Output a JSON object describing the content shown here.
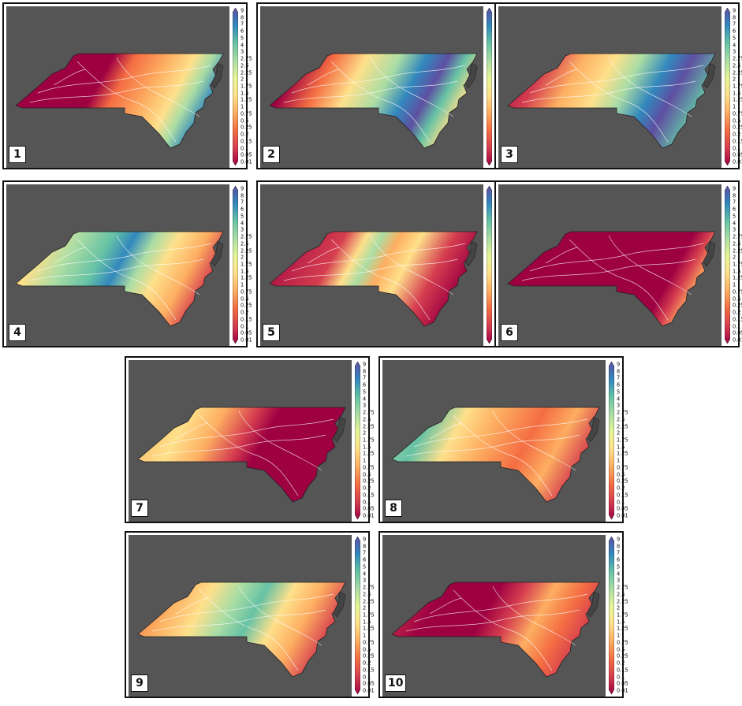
{
  "colorbar": {
    "ticks": [
      "9",
      "8",
      "7",
      "6",
      "5",
      "4",
      "3",
      "2.75",
      "2.5",
      "2.25",
      "2",
      "1.75",
      "1.5",
      "1.25",
      "1",
      "0.75",
      "0.5",
      "0.25",
      "0.2",
      "0.15",
      "0.1",
      "0.05",
      "0.01"
    ],
    "colors": [
      "#5e4fa2",
      "#3288bd",
      "#66c2a5",
      "#abdda4",
      "#e6f598",
      "#fee08b",
      "#fdae61",
      "#f46d43",
      "#d53e4f",
      "#9e0142"
    ]
  },
  "map_background": "#555555",
  "panels": [
    {
      "label": "1",
      "stops": [
        [
          0,
          "#9e0142"
        ],
        [
          0.45,
          "#9e0142"
        ],
        [
          0.55,
          "#f46d43"
        ],
        [
          0.7,
          "#fdae61"
        ],
        [
          0.82,
          "#fee08b"
        ],
        [
          0.9,
          "#abdda4"
        ],
        [
          1,
          "#3288bd"
        ]
      ]
    },
    {
      "label": "2",
      "stops": [
        [
          0,
          "#9e0142"
        ],
        [
          0.15,
          "#9e0142"
        ],
        [
          0.3,
          "#f46d43"
        ],
        [
          0.45,
          "#fee08b"
        ],
        [
          0.6,
          "#abdda4"
        ],
        [
          0.72,
          "#3288bd"
        ],
        [
          0.82,
          "#5e4fa2"
        ],
        [
          0.9,
          "#66c2a5"
        ],
        [
          1,
          "#fee08b"
        ]
      ]
    },
    {
      "label": "3",
      "stops": [
        [
          0,
          "#9e0142"
        ],
        [
          0.2,
          "#d53e4f"
        ],
        [
          0.35,
          "#fdae61"
        ],
        [
          0.5,
          "#fee08b"
        ],
        [
          0.62,
          "#abdda4"
        ],
        [
          0.75,
          "#3288bd"
        ],
        [
          0.85,
          "#5e4fa2"
        ],
        [
          1,
          "#66c2a5"
        ]
      ]
    },
    {
      "label": "4",
      "stops": [
        [
          0,
          "#f46d43"
        ],
        [
          0.15,
          "#fee08b"
        ],
        [
          0.3,
          "#abdda4"
        ],
        [
          0.45,
          "#66c2a5"
        ],
        [
          0.55,
          "#3288bd"
        ],
        [
          0.65,
          "#abdda4"
        ],
        [
          0.75,
          "#fee08b"
        ],
        [
          0.88,
          "#fdae61"
        ],
        [
          1,
          "#d53e4f"
        ]
      ]
    },
    {
      "label": "5",
      "stops": [
        [
          0,
          "#9e0142"
        ],
        [
          0.35,
          "#d53e4f"
        ],
        [
          0.45,
          "#fee08b"
        ],
        [
          0.52,
          "#abdda4"
        ],
        [
          0.6,
          "#fdae61"
        ],
        [
          0.7,
          "#fee08b"
        ],
        [
          0.85,
          "#d53e4f"
        ],
        [
          1,
          "#9e0142"
        ]
      ]
    },
    {
      "label": "6",
      "stops": [
        [
          0,
          "#9e0142"
        ],
        [
          0.85,
          "#9e0142"
        ],
        [
          0.92,
          "#d53e4f"
        ],
        [
          1,
          "#fdae61"
        ]
      ]
    },
    {
      "label": "7",
      "stops": [
        [
          0,
          "#fdae61"
        ],
        [
          0.25,
          "#fee08b"
        ],
        [
          0.4,
          "#fdae61"
        ],
        [
          0.55,
          "#d53e4f"
        ],
        [
          0.65,
          "#9e0142"
        ],
        [
          1,
          "#9e0142"
        ]
      ]
    },
    {
      "label": "8",
      "stops": [
        [
          0,
          "#abdda4"
        ],
        [
          0.2,
          "#66c2a5"
        ],
        [
          0.35,
          "#fee08b"
        ],
        [
          0.5,
          "#fdae61"
        ],
        [
          0.7,
          "#f46d43"
        ],
        [
          0.85,
          "#fdae61"
        ],
        [
          1,
          "#d53e4f"
        ]
      ]
    },
    {
      "label": "9",
      "stops": [
        [
          0,
          "#f46d43"
        ],
        [
          0.2,
          "#fdae61"
        ],
        [
          0.35,
          "#fee08b"
        ],
        [
          0.48,
          "#abdda4"
        ],
        [
          0.6,
          "#66c2a5"
        ],
        [
          0.72,
          "#fee08b"
        ],
        [
          0.85,
          "#fdae61"
        ],
        [
          1,
          "#d53e4f"
        ]
      ]
    },
    {
      "label": "10",
      "stops": [
        [
          0,
          "#d53e4f"
        ],
        [
          0.25,
          "#9e0142"
        ],
        [
          0.5,
          "#9e0142"
        ],
        [
          0.62,
          "#d53e4f"
        ],
        [
          0.75,
          "#fdae61"
        ],
        [
          0.88,
          "#f46d43"
        ],
        [
          1,
          "#d53e4f"
        ]
      ]
    }
  ]
}
